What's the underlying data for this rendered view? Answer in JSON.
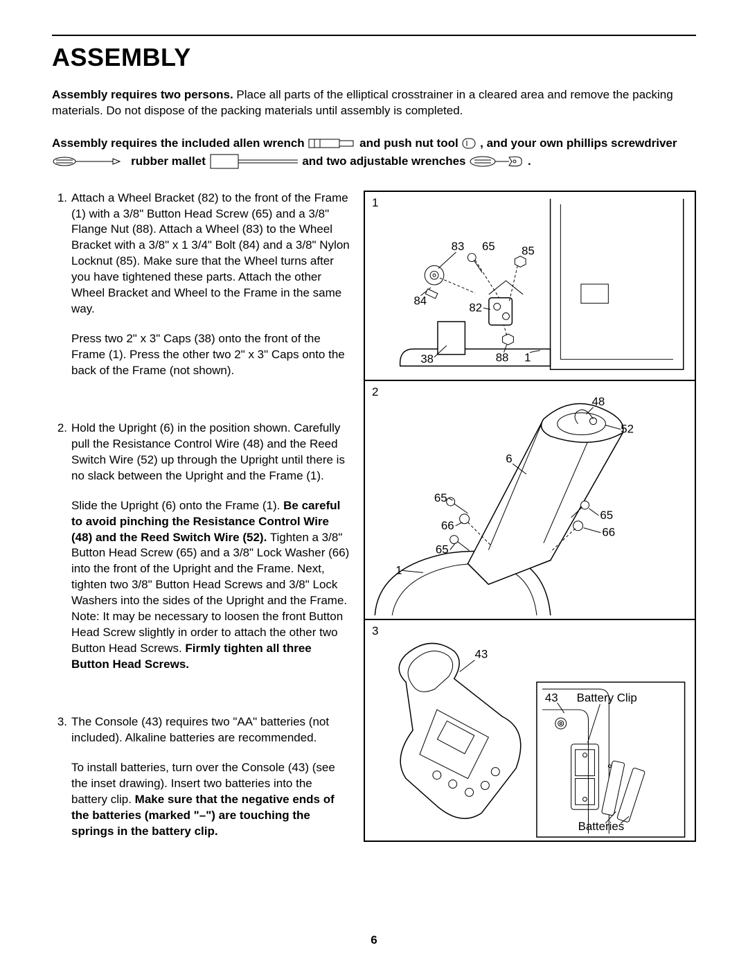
{
  "title": "ASSEMBLY",
  "page_number": "6",
  "intro": {
    "bold": "Assembly requires two persons.",
    "rest": " Place all parts of the elliptical crosstrainer in a cleared area and remove the packing materials. Do not dispose of the packing materials until assembly is completed."
  },
  "tools": {
    "t1": "Assembly requires the included allen wrench ",
    "t2": " and push nut tool ",
    "t3": " , and your own phillips screwdriver ",
    "t4": "   rubber mallet ",
    "t5": " and two adjustable wrenches ",
    "t6": " ."
  },
  "steps": [
    {
      "num": "1.",
      "paras": [
        "Attach a Wheel Bracket (82) to the front of the Frame (1) with a 3/8\" Button Head Screw (65) and a 3/8\" Flange Nut (88). Attach a Wheel (83) to the Wheel Bracket with a 3/8\" x 1 3/4\" Bolt (84) and a 3/8\" Nylon Locknut (85). Make sure that the Wheel turns after you have tightened these parts. Attach the other Wheel Bracket and Wheel to the Frame in the same way.",
        "Press two 2\" x 3\" Caps (38) onto the front of the Frame (1). Press the other two 2\" x 3\" Caps onto the back of the Frame (not shown)."
      ]
    },
    {
      "num": "2.",
      "paras": [
        "Hold the Upright (6) in the position shown. Carefully pull the Resistance Control Wire (48) and the Reed Switch Wire (52) up through the Upright until there is no slack between the Upright and the Frame (1).",
        "Slide the Upright (6) onto the Frame (1). <b>Be careful to avoid pinching the Resistance Control Wire (48) and the Reed Switch Wire (52).</b> Tighten a 3/8\" Button Head Screw (65) and a 3/8\" Lock Washer (66) into the front of the Upright and the Frame. Next, tighten two 3/8\" Button Head Screws and 3/8\" Lock Washers into the sides of the Upright and the Frame. Note: It may be necessary to loosen the front Button Head Screw slightly in order to attach the other two Button Head Screws. <b>Firmly tighten all three Button Head Screws.</b>"
      ]
    },
    {
      "num": "3.",
      "paras": [
        "The Console (43) requires two \"AA\" batteries (not included). Alkaline batteries are recommended.",
        "To install batteries, turn over the Console (43) (see the inset drawing). Insert two batteries into the battery clip. <b>Make sure that the negative ends of the batteries (marked \"–\") are touching the springs in the battery clip.</b>"
      ]
    }
  ],
  "figures": {
    "f1": {
      "num": "1",
      "labels": {
        "l83": "83",
        "l65": "65",
        "l85": "85",
        "l84": "84",
        "l82": "82",
        "l38": "38",
        "l88": "88",
        "l1": "1"
      }
    },
    "f2": {
      "num": "2",
      "labels": {
        "l48": "48",
        "l52": "52",
        "l6": "6",
        "l65a": "65",
        "l66a": "66",
        "l65b": "65",
        "l66b": "66",
        "l65c": "65",
        "l1": "1"
      }
    },
    "f3": {
      "num": "3",
      "labels": {
        "l43a": "43",
        "l43b": "43",
        "clip": "Battery Clip",
        "batt": "Batteries"
      }
    }
  }
}
